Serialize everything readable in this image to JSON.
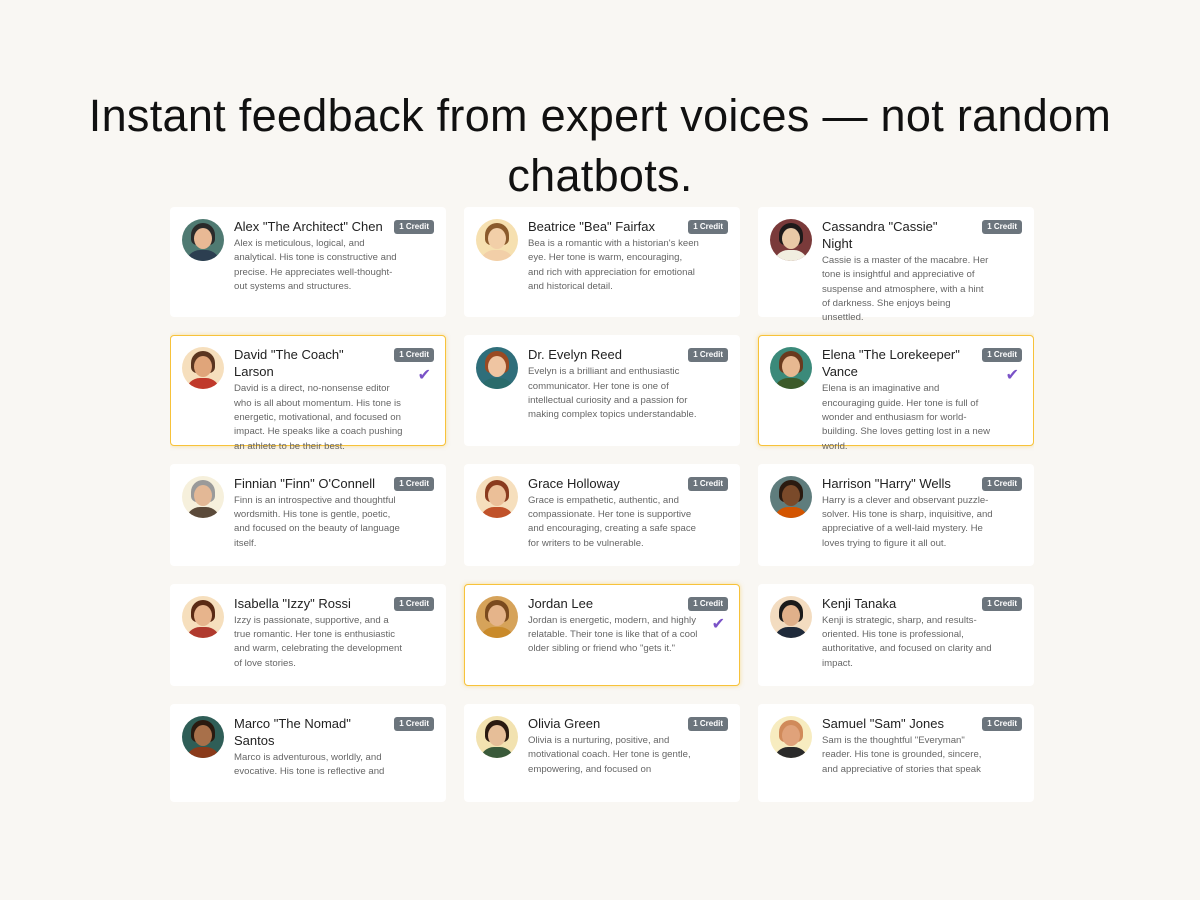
{
  "headline": "Instant feedback from expert voices — not random chatbots.",
  "badge_label": "1 Credit",
  "colors": {
    "selected_border": "#f7c23a",
    "check": "#7a52c7",
    "badge": "#6c757d",
    "background": "#f9f7f3"
  },
  "personas": [
    {
      "name": "Alex \"The Architect\" Chen",
      "description": "Alex is meticulous, logical, and analytical. His tone is constructive and precise. He appreciates well-thought-out systems and structures.",
      "selected": false,
      "credit": "1 Credit"
    },
    {
      "name": "Beatrice \"Bea\" Fairfax",
      "description": "Bea is a romantic with a historian's keen eye. Her tone is warm, encouraging, and rich with appreciation for emotional and historical detail.",
      "selected": false,
      "credit": "1 Credit"
    },
    {
      "name": "Cassandra \"Cassie\" Night",
      "description": "Cassie is a master of the macabre. Her tone is insightful and appreciative of suspense and atmosphere, with a hint of darkness. She enjoys being unsettled.",
      "selected": false,
      "credit": "1 Credit"
    },
    {
      "name": "David \"The Coach\" Larson",
      "description": "David is a direct, no-nonsense editor who is all about momentum. His tone is energetic, motivational, and focused on impact. He speaks like a coach pushing an athlete to be their best.",
      "selected": true,
      "credit": "1 Credit"
    },
    {
      "name": "Dr. Evelyn Reed",
      "description": "Evelyn is a brilliant and enthusiastic communicator. Her tone is one of intellectual curiosity and a passion for making complex topics understandable.",
      "selected": false,
      "credit": "1 Credit"
    },
    {
      "name": "Elena \"The Lorekeeper\" Vance",
      "description": "Elena is an imaginative and encouraging guide. Her tone is full of wonder and enthusiasm for world-building. She loves getting lost in a new world.",
      "selected": true,
      "credit": "1 Credit"
    },
    {
      "name": "Finnian \"Finn\" O'Connell",
      "description": "Finn is an introspective and thoughtful wordsmith. His tone is gentle, poetic, and focused on the beauty of language itself.",
      "selected": false,
      "credit": "1 Credit"
    },
    {
      "name": "Grace Holloway",
      "description": "Grace is empathetic, authentic, and compassionate. Her tone is supportive and encouraging, creating a safe space for writers to be vulnerable.",
      "selected": false,
      "credit": "1 Credit"
    },
    {
      "name": "Harrison \"Harry\" Wells",
      "description": "Harry is a clever and observant puzzle-solver. His tone is sharp, inquisitive, and appreciative of a well-laid mystery. He loves trying to figure it all out.",
      "selected": false,
      "credit": "1 Credit"
    },
    {
      "name": "Isabella \"Izzy\" Rossi",
      "description": "Izzy is passionate, supportive, and a true romantic. Her tone is enthusiastic and warm, celebrating the development of love stories.",
      "selected": false,
      "credit": "1 Credit"
    },
    {
      "name": "Jordan Lee",
      "description": "Jordan is energetic, modern, and highly relatable. Their tone is like that of a cool older sibling or friend who \"gets it.\"",
      "selected": true,
      "credit": "1 Credit"
    },
    {
      "name": "Kenji Tanaka",
      "description": "Kenji is strategic, sharp, and results-oriented. His tone is professional, authoritative, and focused on clarity and impact.",
      "selected": false,
      "credit": "1 Credit"
    },
    {
      "name": "Marco \"The Nomad\" Santos",
      "description": "Marco is adventurous, worldly, and evocative. His tone is reflective and",
      "selected": false,
      "credit": "1 Credit"
    },
    {
      "name": "Olivia Green",
      "description": "Olivia is a nurturing, positive, and motivational coach. Her tone is gentle, empowering, and focused on",
      "selected": false,
      "credit": "1 Credit"
    },
    {
      "name": "Samuel \"Sam\" Jones",
      "description": "Sam is the thoughtful \"Everyman\" reader. His tone is grounded, sincere, and appreciative of stories that speak",
      "selected": false,
      "credit": "1 Credit"
    }
  ]
}
